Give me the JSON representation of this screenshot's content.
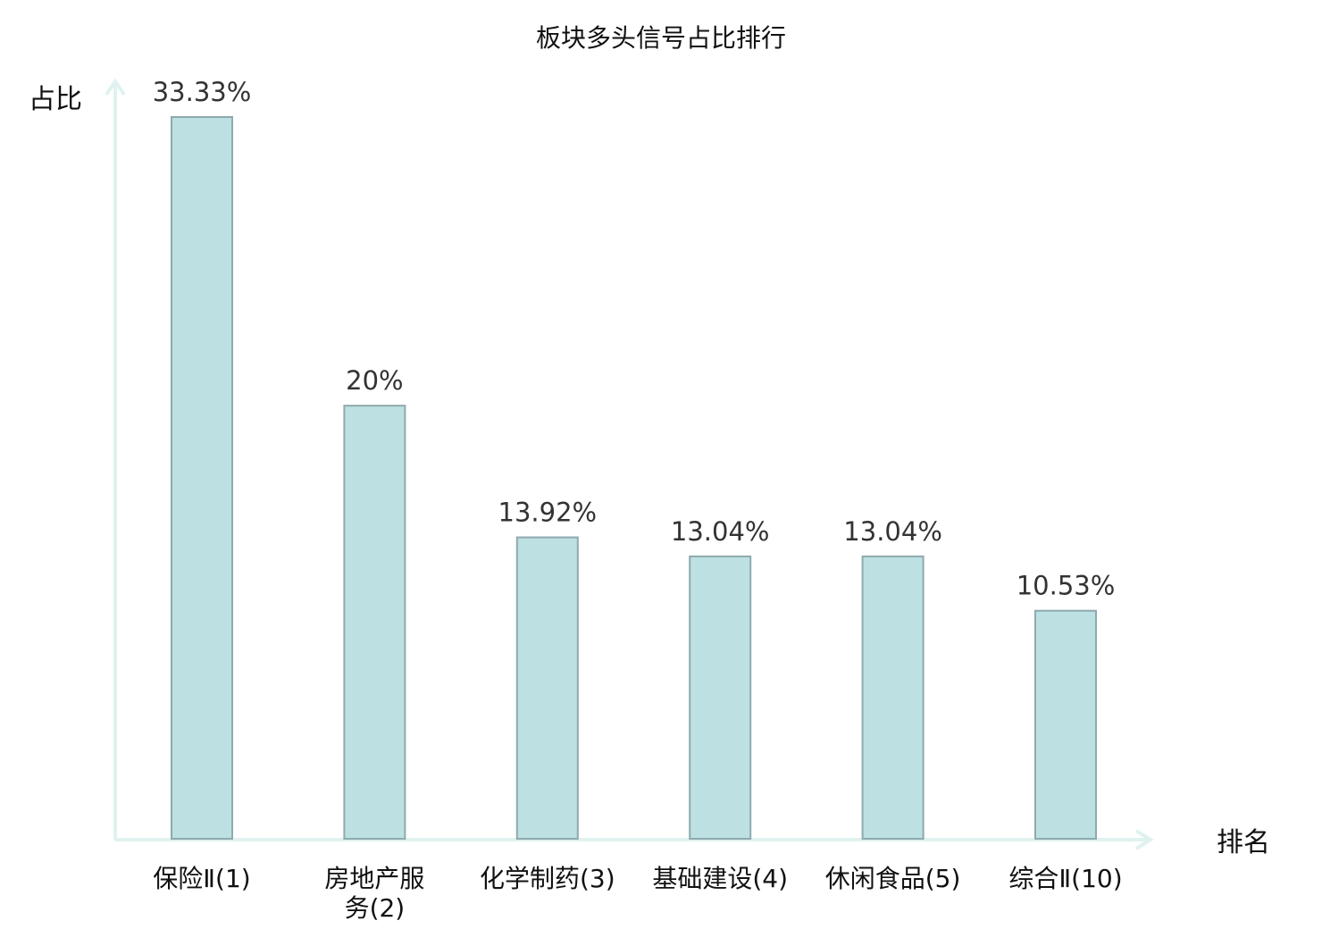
{
  "chart_data": {
    "type": "bar",
    "title": "板块多头信号占比排行",
    "ylabel": "占比",
    "xlabel": "排名",
    "ylim": [
      0,
      35
    ],
    "grid": false,
    "categories": [
      [
        "保险Ⅱ(1)"
      ],
      [
        "房地产服",
        "务(2)"
      ],
      [
        "化学制药(3)"
      ],
      [
        "基础建设(4)"
      ],
      [
        "休闲食品(5)"
      ],
      [
        "综合Ⅱ(10)"
      ]
    ],
    "values": [
      33.33,
      20,
      13.92,
      13.04,
      13.04,
      10.53
    ],
    "data_labels": [
      "33.33%",
      "20%",
      "13.92%",
      "13.04%",
      "13.04%",
      "10.53%"
    ],
    "highlight_index": 5
  },
  "colors": {
    "bar_fill": "#bde0e3",
    "bar_stroke": "#8eaaad",
    "axis": "#dff2ef",
    "highlight_text": "#e02020",
    "text": "#111111",
    "label_text": "#333333"
  }
}
